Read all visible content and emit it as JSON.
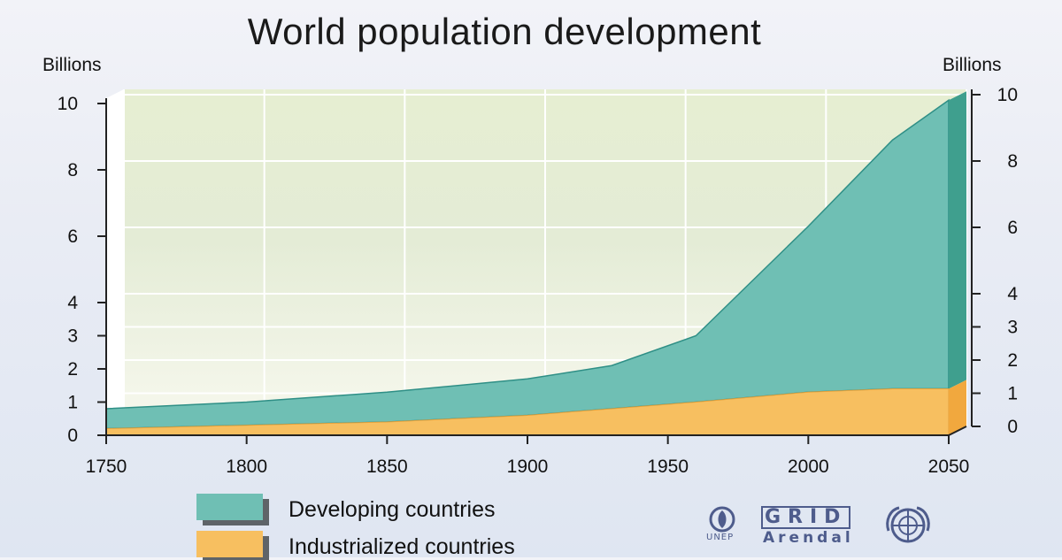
{
  "chart_data": {
    "type": "area",
    "title": "World population development",
    "ylabel_left": "Billions",
    "ylabel_right": "Billions",
    "xlim": [
      1750,
      2050
    ],
    "ylim": [
      0,
      10
    ],
    "x_ticks": [
      "1750",
      "1800",
      "1850",
      "1900",
      "1950",
      "2000",
      "2050"
    ],
    "y_ticks_left": [
      "0",
      "1",
      "2",
      "3",
      "4",
      "6",
      "8",
      "10"
    ],
    "y_ticks_right": [
      "0",
      "1",
      "2",
      "3",
      "4",
      "6",
      "8",
      "10"
    ],
    "grid": true,
    "stacked": true,
    "x": [
      1750,
      1800,
      1850,
      1900,
      1930,
      1960,
      2000,
      2030,
      2050
    ],
    "series": [
      {
        "name": "Industrialized countries",
        "color": "#f7bf60",
        "values": [
          0.2,
          0.3,
          0.4,
          0.6,
          0.8,
          1.0,
          1.3,
          1.4,
          1.4
        ]
      },
      {
        "name": "Developing countries",
        "color": "#6fbfb4",
        "values": [
          0.6,
          0.7,
          0.9,
          1.1,
          1.3,
          2.0,
          5.0,
          7.5,
          8.7
        ]
      }
    ],
    "total": [
      0.8,
      1.0,
      1.3,
      1.7,
      2.1,
      3.0,
      6.3,
      8.9,
      10.1
    ]
  },
  "legend": [
    {
      "label": "Developing countries",
      "color": "#6fbfb4"
    },
    {
      "label": "Industrialized countries",
      "color": "#f7bf60"
    }
  ],
  "logos": {
    "unep": "UNEP",
    "grid_top": "GRID",
    "grid_bottom": "Arendal"
  }
}
